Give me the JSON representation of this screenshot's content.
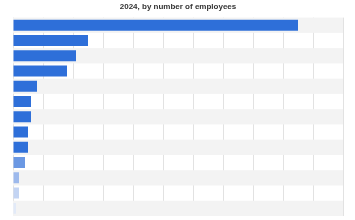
{
  "chart_data": {
    "type": "bar",
    "title": "2024, by number of employees",
    "orientation": "horizontal",
    "categories": [
      null,
      null,
      null,
      null,
      null,
      null,
      null,
      null,
      null,
      null,
      null,
      null,
      null
    ],
    "values": [
      95,
      25,
      21,
      18,
      8,
      6,
      6,
      5,
      5,
      4,
      2,
      2,
      1
    ],
    "colors": [
      "#2e6fd9",
      "#2e6fd9",
      "#2e6fd9",
      "#2e6fd9",
      "#2e6fd9",
      "#2e6fd9",
      "#2e6fd9",
      "#2e6fd9",
      "#2e6fd9",
      "#6b98e3",
      "#9db9ec",
      "#c3d4f3",
      "#e2eaf8"
    ],
    "xlim": [
      0,
      110
    ],
    "xticks": [
      0,
      10,
      20,
      30,
      40,
      50,
      60,
      70,
      80,
      90,
      100,
      110
    ],
    "grid": true,
    "tick_labels": false
  }
}
